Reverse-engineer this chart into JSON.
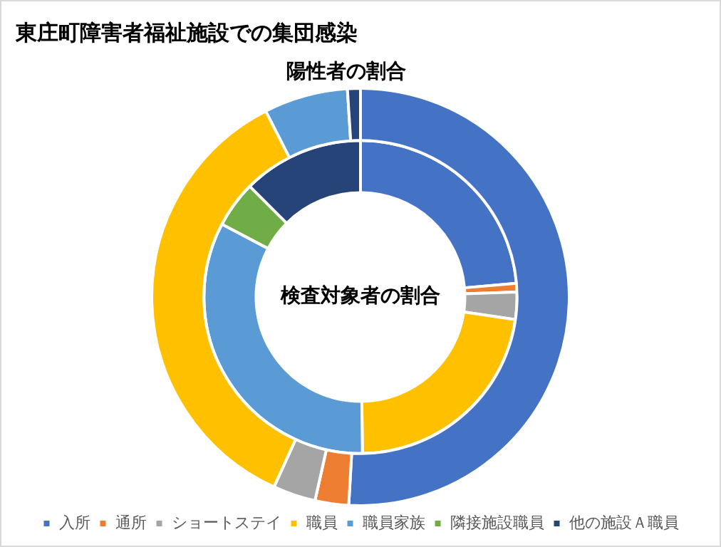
{
  "chart_data": {
    "type": "donut",
    "title": "東庄町障害者福祉施設での集団感染",
    "categories": [
      "入所",
      "通所",
      "ショートステイ",
      "職員",
      "職員家族",
      "隣接施設職員",
      "他の施設Ａ職員"
    ],
    "colors": [
      "#4472c4",
      "#ed7d31",
      "#a5a5a5",
      "#ffc000",
      "#5b9bd5",
      "#70ad47",
      "#264478"
    ],
    "series": [
      {
        "name": "陽性者の割合",
        "values": [
          50.9,
          2.6,
          3.3,
          35.7,
          6.5,
          0,
          1.0
        ]
      },
      {
        "name": "検査対象者の割合",
        "values": [
          23.6,
          0.9,
          2.8,
          22.5,
          32.9,
          4.8,
          12.5
        ]
      }
    ],
    "legend": "bottom"
  }
}
